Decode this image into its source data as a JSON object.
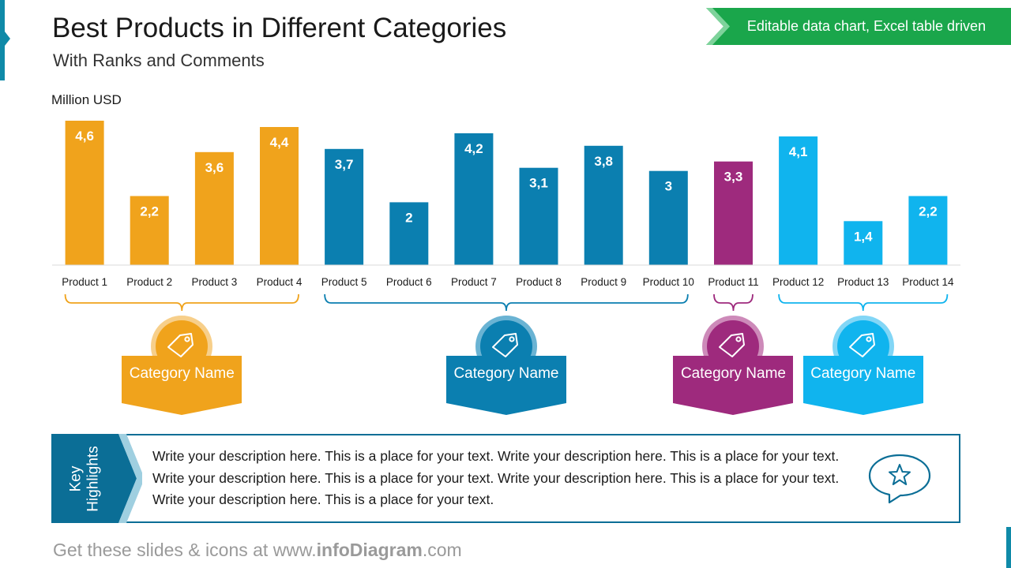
{
  "header": {
    "title": "Best Products in Different Categories",
    "subtitle": "With Ranks and Comments"
  },
  "banner": {
    "text": "Editable data chart, Excel table driven",
    "color": "#1aa64b"
  },
  "chart_data": {
    "type": "bar",
    "ylabel": "Million USD",
    "categories": [
      "Product 1",
      "Product 2",
      "Product 3",
      "Product 4",
      "Product 5",
      "Product 6",
      "Product 7",
      "Product 8",
      "Product 9",
      "Product 10",
      "Product 11",
      "Product 12",
      "Product 13",
      "Product 14"
    ],
    "values": [
      4.6,
      2.2,
      3.6,
      4.4,
      3.7,
      2,
      4.2,
      3.1,
      3.8,
      3,
      3.3,
      4.1,
      1.4,
      2.2
    ],
    "value_labels": [
      "4,6",
      "2,2",
      "3,6",
      "4,4",
      "3,7",
      "2",
      "4,2",
      "3,1",
      "3,8",
      "3",
      "3,3",
      "4,1",
      "1,4",
      "2,2"
    ],
    "group_index": [
      0,
      0,
      0,
      0,
      1,
      1,
      1,
      1,
      1,
      1,
      2,
      3,
      3,
      3
    ],
    "ylim": [
      0,
      4.6
    ],
    "grid": false,
    "legend": "none"
  },
  "groups": [
    {
      "label": "Category Name",
      "icon": "price-tag-icon",
      "color": "#f0a31c",
      "light": "#f7cf8a"
    },
    {
      "label": "Category Name",
      "icon": "price-tag-icon",
      "color": "#0b7fb0",
      "light": "#6ab3d3"
    },
    {
      "label": "Category Name",
      "icon": "price-tag-icon",
      "color": "#9e2a7d",
      "light": "#cd8ab9"
    },
    {
      "label": "Category Name",
      "icon": "price-tag-icon",
      "color": "#10b4ee",
      "light": "#82d6f6"
    }
  ],
  "highlights": {
    "label_line1": "Key",
    "label_line2": "Highlights",
    "text": "Write your description here. This is a place for your text. Write your description here. This is a place for your text. Write your description here. This is a place for your text. Write your description here. This is a place for your text. Write your description here. This is a place for your text.",
    "icon": "star-speech-bubble-icon"
  },
  "footer": {
    "prefix": "Get these slides & icons at www.",
    "brand": "infoDiagram",
    "suffix": ".com"
  }
}
